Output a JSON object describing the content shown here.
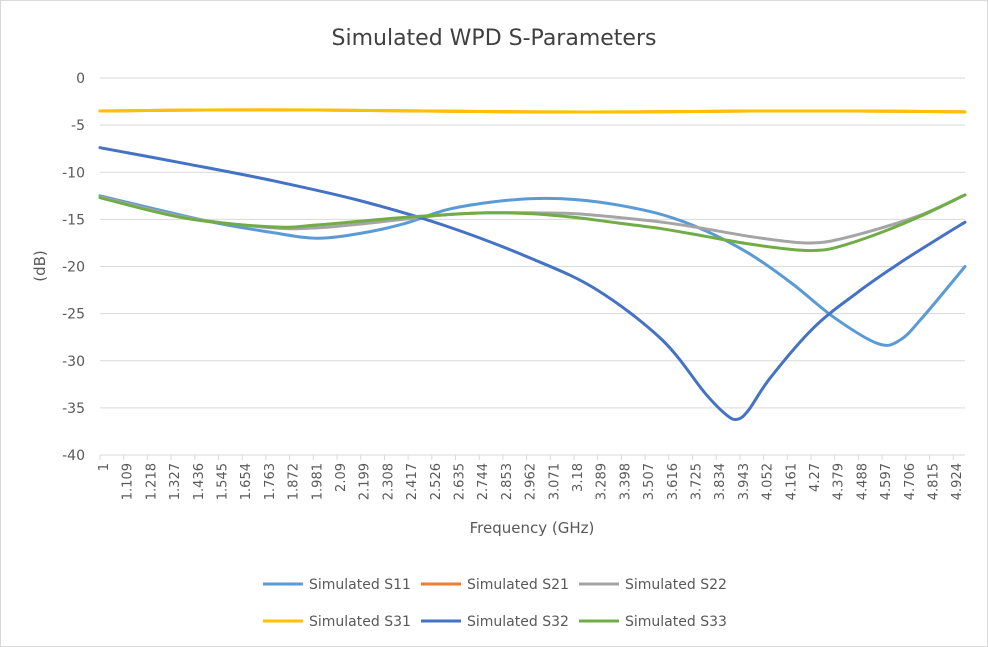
{
  "chart_data": {
    "type": "line",
    "title": "Simulated WPD S-Parameters",
    "xlabel": "Frequency (GHz)",
    "ylabel": "(dB)",
    "xlim": [
      1,
      5
    ],
    "ylim": [
      -40,
      0
    ],
    "y_ticks": [
      0,
      -5,
      -10,
      -15,
      -20,
      -25,
      -30,
      -35,
      -40
    ],
    "x_tick_labels": [
      "1",
      "1.109",
      "1.218",
      "1.327",
      "1.436",
      "1.545",
      "1.654",
      "1.763",
      "1.872",
      "1.981",
      "2.09",
      "2.199",
      "2.308",
      "2.417",
      "2.526",
      "2.635",
      "2.744",
      "2.853",
      "2.962",
      "3.071",
      "3.18",
      "3.289",
      "3.398",
      "3.507",
      "3.616",
      "3.725",
      "3.834",
      "3.943",
      "4.052",
      "4.161",
      "4.27",
      "4.379",
      "4.488",
      "4.597",
      "4.706",
      "4.815",
      "4.924"
    ],
    "grid": "horizontal",
    "legend_position": "bottom",
    "series": [
      {
        "name": "Simulated S11",
        "color": "#5b9bd5",
        "x": [
          1.0,
          1.5,
          1.8,
          2.0,
          2.2,
          2.4,
          2.6,
          2.8,
          3.0,
          3.2,
          3.4,
          3.6,
          3.8,
          4.0,
          4.2,
          4.4,
          4.6,
          4.7,
          4.8,
          5.0
        ],
        "y": [
          -12.5,
          -15.2,
          -16.4,
          -17.0,
          -16.5,
          -15.5,
          -14.0,
          -13.2,
          -12.8,
          -12.9,
          -13.5,
          -14.5,
          -16.2,
          -18.6,
          -21.8,
          -25.5,
          -28.2,
          -27.8,
          -25.5,
          -20.0
        ]
      },
      {
        "name": "Simulated S21",
        "color": "#ed7d31",
        "x": [
          1.0,
          1.5,
          2.0,
          2.5,
          3.0,
          3.5,
          4.0,
          4.5,
          5.0
        ],
        "y": [
          -3.5,
          -3.4,
          -3.4,
          -3.5,
          -3.6,
          -3.6,
          -3.5,
          -3.5,
          -3.6
        ]
      },
      {
        "name": "Simulated S22",
        "color": "#a5a5a5",
        "x": [
          1.0,
          1.4,
          1.8,
          2.0,
          2.2,
          2.4,
          2.6,
          2.8,
          3.0,
          3.2,
          3.4,
          3.6,
          3.8,
          4.0,
          4.2,
          4.3,
          4.4,
          4.6,
          4.8,
          5.0
        ],
        "y": [
          -12.6,
          -14.8,
          -15.9,
          -15.9,
          -15.5,
          -15.0,
          -14.5,
          -14.3,
          -14.3,
          -14.4,
          -14.8,
          -15.3,
          -16.0,
          -16.8,
          -17.4,
          -17.5,
          -17.2,
          -16.0,
          -14.5,
          -12.4
        ]
      },
      {
        "name": "Simulated S31",
        "color": "#ffc000",
        "x": [
          1.0,
          1.5,
          2.0,
          2.5,
          3.0,
          3.5,
          4.0,
          4.5,
          5.0
        ],
        "y": [
          -3.5,
          -3.4,
          -3.4,
          -3.5,
          -3.6,
          -3.6,
          -3.5,
          -3.5,
          -3.6
        ]
      },
      {
        "name": "Simulated S32",
        "color": "#4472c4",
        "x": [
          1.0,
          1.4,
          1.8,
          2.2,
          2.6,
          3.0,
          3.3,
          3.6,
          3.8,
          3.9,
          3.95,
          4.0,
          4.1,
          4.3,
          4.5,
          4.7,
          4.9,
          5.0
        ],
        "y": [
          -7.4,
          -9.1,
          -10.9,
          -13.0,
          -15.7,
          -19.2,
          -22.5,
          -27.8,
          -33.5,
          -35.8,
          -36.2,
          -35.2,
          -31.8,
          -26.5,
          -22.8,
          -19.6,
          -16.7,
          -15.3
        ]
      },
      {
        "name": "Simulated S33",
        "color": "#70ad47",
        "x": [
          1.0,
          1.4,
          1.8,
          2.0,
          2.2,
          2.4,
          2.6,
          2.8,
          3.0,
          3.2,
          3.4,
          3.6,
          3.8,
          4.0,
          4.2,
          4.3,
          4.4,
          4.6,
          4.8,
          5.0
        ],
        "y": [
          -12.7,
          -14.9,
          -15.8,
          -15.6,
          -15.2,
          -14.8,
          -14.5,
          -14.3,
          -14.4,
          -14.8,
          -15.4,
          -16.0,
          -16.8,
          -17.6,
          -18.2,
          -18.3,
          -18.0,
          -16.5,
          -14.6,
          -12.4
        ]
      }
    ]
  }
}
